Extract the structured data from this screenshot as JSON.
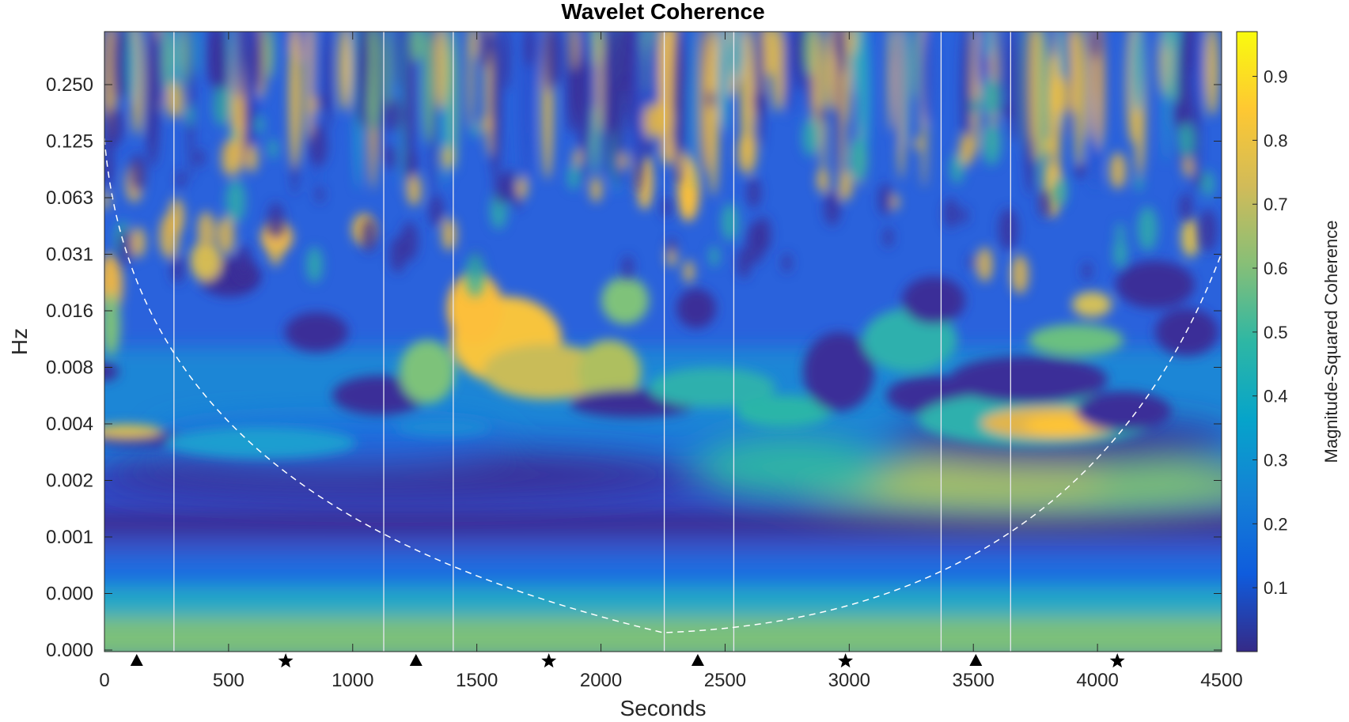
{
  "chart_data": {
    "type": "heatmap",
    "title": "Wavelet Coherence",
    "xlabel": "Seconds",
    "ylabel": "Hz",
    "xlim": [
      0,
      4500
    ],
    "x_ticks": [
      0,
      500,
      1000,
      1500,
      2000,
      2500,
      3000,
      3500,
      4000,
      4500
    ],
    "x_tick_labels": [
      "0",
      "500",
      "1000",
      "1500",
      "2000",
      "2500",
      "3000",
      "3500",
      "4000",
      "4500"
    ],
    "y_scale": "log2",
    "y_tick_labels": [
      "0.250",
      "0.125",
      "0.063",
      "0.031",
      "0.016",
      "0.008",
      "0.004",
      "0.002",
      "0.001",
      "0.000",
      "0.000"
    ],
    "colorbar": {
      "label": "Magnitude-Squared Coherence",
      "range": [
        0,
        0.97
      ],
      "ticks": [
        0.1,
        0.2,
        0.3,
        0.4,
        0.5,
        0.6,
        0.7,
        0.8,
        0.9
      ],
      "tick_labels": [
        "0.1",
        "0.2",
        "0.3",
        "0.4",
        "0.5",
        "0.6",
        "0.7",
        "0.8",
        "0.9"
      ],
      "colormap": "parula",
      "colormap_stops": [
        "#352a87",
        "#0f5cdd",
        "#1481d6",
        "#06a4ca",
        "#2eb7a4",
        "#87bf77",
        "#d1bb59",
        "#fec832",
        "#f9fb0e"
      ]
    },
    "event_lines_x": [
      280,
      1125,
      1405,
      2255,
      2535,
      3370,
      3650
    ],
    "markers": [
      {
        "x": 130,
        "symbol": "triangle"
      },
      {
        "x": 730,
        "symbol": "star"
      },
      {
        "x": 1255,
        "symbol": "triangle"
      },
      {
        "x": 1790,
        "symbol": "star"
      },
      {
        "x": 2390,
        "symbol": "triangle"
      },
      {
        "x": 2985,
        "symbol": "star"
      },
      {
        "x": 3510,
        "symbol": "triangle"
      },
      {
        "x": 4080,
        "symbol": "star"
      }
    ],
    "cone_of_influence": "dashed white",
    "grid": false
  }
}
